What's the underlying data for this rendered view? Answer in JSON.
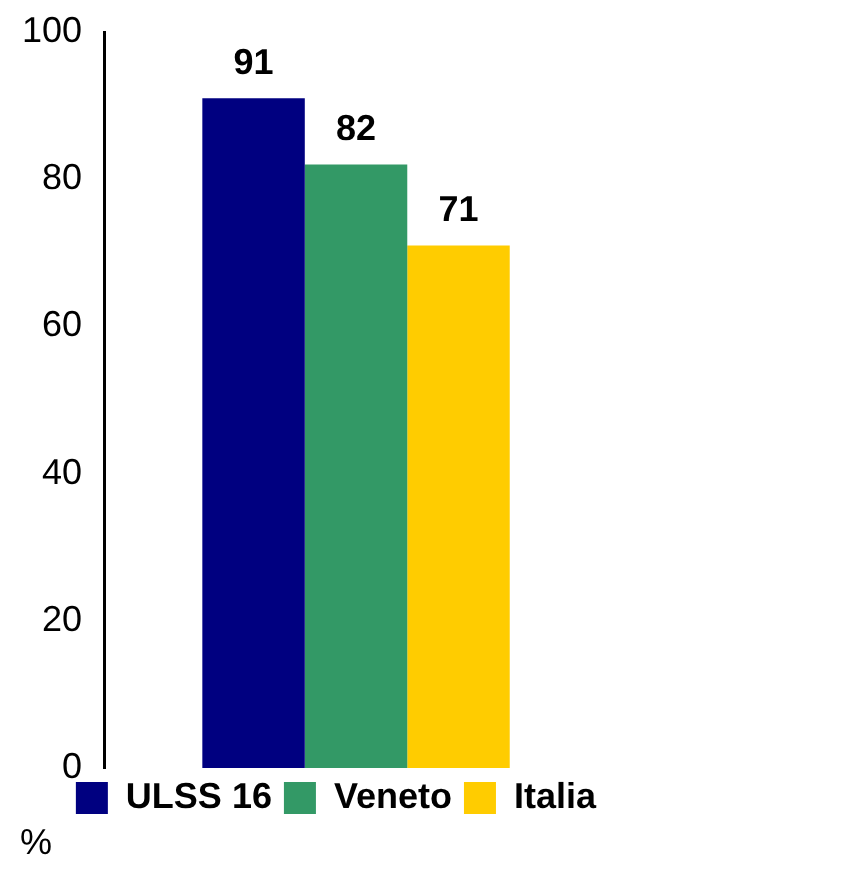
{
  "chart_data": {
    "type": "bar",
    "categories": [
      null
    ],
    "series": [
      {
        "name": "ULSS 16",
        "color": "#000080",
        "values": [
          91
        ]
      },
      {
        "name": "Veneto",
        "color": "#339966",
        "values": [
          82
        ]
      },
      {
        "name": "Italia",
        "color": "#ffcc00",
        "values": [
          71
        ]
      }
    ],
    "ylim": [
      0,
      100
    ],
    "yticks": [
      0,
      20,
      40,
      60,
      80,
      100
    ],
    "ylabel": "%",
    "data_labels": true,
    "legend": "bottom right"
  }
}
